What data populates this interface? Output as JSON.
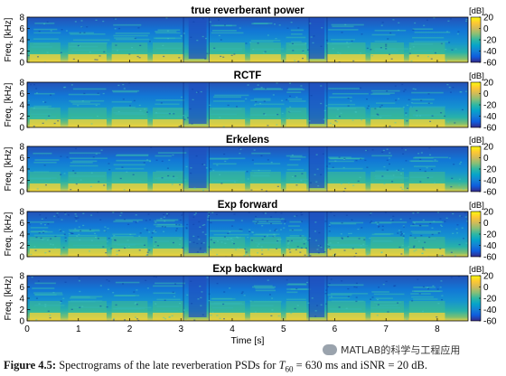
{
  "chart_data": {
    "type": "heatmap",
    "panels": [
      {
        "title": "true reverberant power"
      },
      {
        "title": "RCTF"
      },
      {
        "title": "Erkelens"
      },
      {
        "title": "Exp forward"
      },
      {
        "title": "Exp backward"
      }
    ],
    "ylabel": "Freq. [kHz]",
    "yticks": [
      "0",
      "2",
      "4",
      "6",
      "8"
    ],
    "ylim": [
      0,
      8
    ],
    "xlabel": "Time [s]",
    "xticks": [
      "0",
      "1",
      "2",
      "3",
      "4",
      "5",
      "6",
      "7",
      "8"
    ],
    "xlim": [
      0,
      8.6
    ],
    "colorbar": {
      "unit": "[dB]",
      "ticks": [
        "20",
        "0",
        "-20",
        "-40",
        "-60"
      ],
      "range": [
        -60,
        20
      ],
      "colormap": "parula"
    }
  },
  "caption": {
    "label": "Figure 4.5:",
    "text_before": " Spectrograms of the late reverberation PSDs for ",
    "symbol": "T",
    "subscript": "60",
    "text_after": " = 630 ms and iSNR = 20 dB."
  },
  "watermark": "MATLAB的科学与工程应用"
}
